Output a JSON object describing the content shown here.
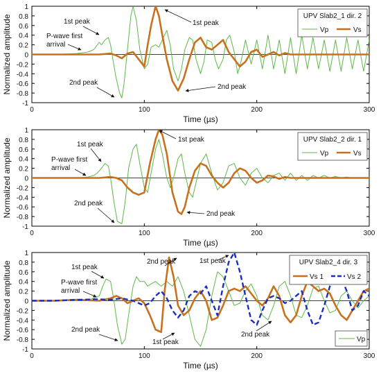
{
  "chart_data": [
    {
      "type": "line",
      "xlabel": "Time (µs)",
      "ylabel": "Normalized amplitude",
      "xlim": [
        0,
        300
      ],
      "ylim": [
        -1,
        1
      ],
      "xticks": [
        0,
        100,
        200,
        300
      ],
      "yticks": [
        -1,
        -0.8,
        -0.6,
        -0.4,
        -0.2,
        0,
        0.2,
        0.4,
        0.6,
        0.8,
        1
      ],
      "legend_title": "UPV Slab2_1 dir. 2",
      "legend_position": "top-right",
      "series": [
        {
          "name": "Vp",
          "color": "#5cb845",
          "style": "thin",
          "x": [
            0,
            20,
            40,
            50,
            55,
            60,
            62,
            65,
            68,
            70,
            72,
            75,
            78,
            80,
            82,
            85,
            88,
            90,
            93,
            96,
            100,
            103,
            106,
            110,
            113,
            116,
            120,
            123,
            126,
            130,
            133,
            136,
            140,
            143,
            146,
            150,
            153,
            156,
            160,
            163,
            166,
            170,
            173,
            176,
            180,
            183,
            186,
            190,
            195,
            200,
            205,
            210,
            215,
            220,
            225,
            230,
            235,
            240,
            245,
            250,
            255,
            260,
            265,
            270,
            275,
            280,
            285,
            290,
            295,
            300
          ],
          "y": [
            0,
            0,
            0.02,
            0.05,
            0.1,
            0.25,
            0.2,
            0.3,
            0.35,
            0.2,
            -0.1,
            -0.5,
            -0.8,
            -0.9,
            -0.6,
            0.1,
            0.8,
            1.0,
            0.7,
            0.1,
            -0.3,
            -0.2,
            0.15,
            0.2,
            0.15,
            0.3,
            0.5,
            0.2,
            -0.3,
            -0.55,
            -0.3,
            0.1,
            0.35,
            0.3,
            -0.1,
            -0.4,
            -0.15,
            0.3,
            0.25,
            -0.1,
            -0.3,
            -0.1,
            0.3,
            0.4,
            0.05,
            -0.4,
            -0.15,
            0.3,
            -0.2,
            0.3,
            -0.3,
            0.4,
            -0.3,
            0.3,
            -0.4,
            0.35,
            -0.4,
            0.4,
            -0.3,
            0.35,
            -0.3,
            0.3,
            -0.35,
            0.3,
            -0.35,
            0.35,
            -0.3,
            0.3,
            -0.35,
            0.3
          ]
        },
        {
          "name": "Vs",
          "color": "#c8701c",
          "style": "thick",
          "x": [
            0,
            20,
            40,
            60,
            70,
            75,
            80,
            85,
            90,
            95,
            100,
            103,
            106,
            110,
            113,
            116,
            120,
            125,
            130,
            135,
            140,
            145,
            150,
            155,
            160,
            165,
            170,
            175,
            180,
            185,
            190,
            195,
            200,
            205,
            210,
            215,
            220,
            225,
            230,
            240,
            250,
            260,
            270,
            280,
            290,
            300
          ],
          "y": [
            0,
            0,
            0,
            0,
            0.02,
            -0.02,
            -0.08,
            0.02,
            0.05,
            -0.1,
            -0.25,
            0.2,
            0.6,
            1.0,
            0.8,
            0.4,
            -0.1,
            -0.55,
            -0.75,
            -0.5,
            -0.1,
            0.25,
            0.35,
            0.15,
            0.1,
            0.2,
            0.3,
            0.05,
            -0.1,
            -0.25,
            -0.15,
            0.05,
            0.1,
            -0.05,
            0,
            0.05,
            -0.02,
            0.03,
            0,
            0,
            0,
            0,
            0,
            0,
            0,
            0
          ]
        }
      ],
      "annotations": [
        "1st peak",
        "P-wave first arrival",
        "2nd peak",
        "1st peak",
        "2nd peak"
      ]
    },
    {
      "type": "line",
      "xlabel": "Time (µs)",
      "ylabel": "Normalized amplitude",
      "xlim": [
        0,
        300
      ],
      "ylim": [
        -1,
        1
      ],
      "xticks": [
        0,
        100,
        200,
        300
      ],
      "yticks": [
        -1,
        -0.8,
        -0.6,
        -0.4,
        -0.2,
        0,
        0.2,
        0.4,
        0.6,
        0.8,
        1
      ],
      "legend_title": "UPV Slab2_2 dir. 1",
      "legend_position": "top-right",
      "series": [
        {
          "name": "Vp",
          "color": "#5cb845",
          "style": "thin",
          "x": [
            0,
            20,
            40,
            50,
            55,
            58,
            62,
            65,
            68,
            70,
            73,
            76,
            80,
            83,
            86,
            90,
            93,
            96,
            100,
            103,
            106,
            110,
            113,
            116,
            120,
            123,
            126,
            130,
            133,
            136,
            140,
            143,
            146,
            150,
            155,
            160,
            165,
            170,
            175,
            180,
            185,
            190,
            195,
            200,
            205,
            210,
            215,
            220,
            225,
            230,
            235,
            240,
            245,
            250,
            255,
            260,
            265,
            270,
            275,
            280,
            285,
            290,
            295,
            300
          ],
          "y": [
            0,
            0,
            0,
            0.02,
            0.05,
            0.1,
            0.2,
            0.3,
            0.25,
            0,
            -0.5,
            -0.9,
            -0.95,
            -0.5,
            0.2,
            0.6,
            0.7,
            0.3,
            -0.2,
            -0.3,
            0.1,
            0.6,
            0.8,
            0.5,
            0,
            -0.2,
            0,
            0.4,
            0.5,
            0.1,
            -0.3,
            -0.4,
            -0.1,
            0.3,
            0.5,
            0.1,
            -0.25,
            -0.1,
            0.25,
            0.3,
            0,
            -0.15,
            0.1,
            0.2,
            0,
            -0.1,
            0.05,
            0.1,
            -0.05,
            0.1,
            -0.05,
            0.05,
            -0.05,
            0.05,
            0,
            0.05,
            0,
            0.03,
            0,
            0.02,
            0,
            0,
            0,
            0
          ]
        },
        {
          "name": "Vs",
          "color": "#c8701c",
          "style": "thick",
          "x": [
            0,
            20,
            40,
            60,
            70,
            75,
            80,
            85,
            90,
            95,
            100,
            105,
            110,
            113,
            116,
            120,
            125,
            130,
            133,
            136,
            140,
            145,
            150,
            155,
            160,
            165,
            170,
            175,
            180,
            185,
            190,
            195,
            200,
            205,
            210,
            215,
            220,
            225,
            230,
            240,
            250,
            260,
            270,
            280,
            290,
            300
          ],
          "y": [
            0,
            0,
            0,
            0,
            0.02,
            0,
            -0.05,
            -0.2,
            -0.3,
            -0.35,
            -0.3,
            0.3,
            0.8,
            1.0,
            0.9,
            0.5,
            -0.3,
            -0.7,
            -0.75,
            -0.6,
            -0.2,
            0.15,
            0.3,
            0.25,
            0.05,
            -0.1,
            -0.2,
            -0.1,
            0.1,
            0.2,
            0.15,
            0,
            -0.1,
            -0.05,
            0.05,
            0.03,
            -0.02,
            0.02,
            0,
            0,
            0,
            0,
            0,
            0,
            0,
            0
          ]
        }
      ],
      "annotations": [
        "1st peak",
        "P-wave first arrival",
        "2nd peak",
        "1st peak",
        "2nd peak"
      ]
    },
    {
      "type": "line",
      "xlabel": "Time (µs)",
      "ylabel": "Normalized amplitude",
      "xlim": [
        0,
        300
      ],
      "ylim": [
        -1,
        1
      ],
      "xticks": [
        0,
        100,
        200,
        300
      ],
      "yticks": [
        -1,
        -0.8,
        -0.6,
        -0.4,
        -0.2,
        0,
        0.2,
        0.4,
        0.6,
        0.8,
        1
      ],
      "legend_title": "UPV Slab2_4 dir. 3",
      "legend_position": "top-right",
      "series": [
        {
          "name": "Vs 1",
          "color": "#c8701c",
          "style": "thick",
          "x": [
            0,
            20,
            40,
            60,
            70,
            75,
            80,
            85,
            90,
            95,
            100,
            105,
            110,
            115,
            118,
            122,
            126,
            130,
            135,
            140,
            145,
            150,
            155,
            160,
            165,
            170,
            175,
            180,
            185,
            190,
            195,
            200,
            205,
            210,
            215,
            220,
            225,
            230,
            235,
            240,
            245,
            250,
            255,
            260,
            265,
            270,
            275,
            280,
            285,
            290,
            295,
            300
          ],
          "y": [
            0,
            0,
            0.02,
            0,
            0.05,
            0.1,
            0.05,
            -0.05,
            0,
            0.05,
            -0.05,
            -0.3,
            -0.6,
            -0.65,
            0.2,
            0.9,
            0.5,
            -0.1,
            -0.3,
            -0.2,
            0.05,
            0.2,
            0,
            -0.4,
            -0.35,
            -0.1,
            0.2,
            0.25,
            0.2,
            0.3,
            0.15,
            0,
            -0.1,
            0.05,
            0.3,
            0.1,
            -0.3,
            -0.45,
            -0.3,
            0.1,
            0.4,
            0.3,
            0.2,
            0.25,
            0.15,
            -0.1,
            -0.3,
            -0.4,
            -0.2,
            0,
            0.2,
            0.25
          ]
        },
        {
          "name": "Vs 2",
          "color": "#1a2fbf",
          "style": "dashed",
          "x": [
            0,
            20,
            40,
            60,
            70,
            80,
            90,
            95,
            100,
            105,
            110,
            115,
            120,
            125,
            130,
            135,
            140,
            145,
            150,
            155,
            160,
            165,
            170,
            175,
            180,
            185,
            190,
            195,
            200,
            205,
            210,
            215,
            220,
            225,
            230,
            235,
            240,
            245,
            250,
            255,
            260,
            265,
            270,
            275,
            280,
            285,
            290,
            295,
            300
          ],
          "y": [
            0,
            0,
            0.02,
            0.03,
            0.02,
            0.05,
            0,
            -0.05,
            -0.1,
            -0.05,
            0.1,
            0.2,
            0.05,
            -0.2,
            -0.35,
            -0.2,
            0.1,
            0.2,
            0.15,
            0.3,
            0,
            -0.3,
            0.3,
            0.8,
            1.0,
            0.6,
            0.1,
            -0.4,
            -0.5,
            -0.2,
            0.05,
            0.1,
            0.05,
            -0.05,
            0,
            0.1,
            0.2,
            -0.2,
            -0.5,
            -0.45,
            -0.1,
            0.3,
            0.6,
            0.5,
            0.2,
            -0.2,
            -0.1,
            0.2,
            0.1
          ]
        },
        {
          "name": "Vp",
          "color": "#5cb845",
          "style": "thin",
          "x": [
            0,
            20,
            40,
            50,
            55,
            60,
            63,
            66,
            70,
            73,
            76,
            80,
            83,
            86,
            90,
            93,
            96,
            100,
            103,
            106,
            110,
            115,
            120,
            125,
            130,
            135,
            140,
            145,
            150,
            155,
            160,
            165,
            170,
            175,
            180,
            185,
            190,
            195,
            200,
            205,
            210,
            215,
            220,
            225,
            230,
            235,
            240,
            245,
            250,
            255,
            260,
            265,
            270,
            275,
            280,
            285,
            290,
            295,
            300
          ],
          "y": [
            0,
            0,
            0,
            0.02,
            0.05,
            0.1,
            0.3,
            0.45,
            0.4,
            0,
            -0.5,
            -0.9,
            -0.8,
            -0.3,
            0.3,
            0.5,
            0.4,
            0.4,
            0.3,
            0.35,
            0.4,
            0.3,
            0.4,
            0.3,
            0.5,
            0.2,
            -0.3,
            -0.8,
            -0.95,
            -0.6,
            0.1,
            0.6,
            0.5,
            0.2,
            -0.1,
            -0.05,
            0.2,
            0.35,
            0.1,
            -0.3,
            -0.4,
            -0.1,
            0.3,
            0.4,
            0.1,
            -0.3,
            -0.35,
            -0.1,
            0.25,
            0.3,
            0,
            -0.25,
            -0.2,
            0.1,
            0.2,
            0,
            -0.15,
            0,
            0.1
          ]
        }
      ],
      "annotations": [
        "1st peak",
        "P-wave first arrival",
        "2nd peak",
        "2nd peak",
        "1st peak",
        "1st peak",
        "2nd peak"
      ]
    }
  ]
}
